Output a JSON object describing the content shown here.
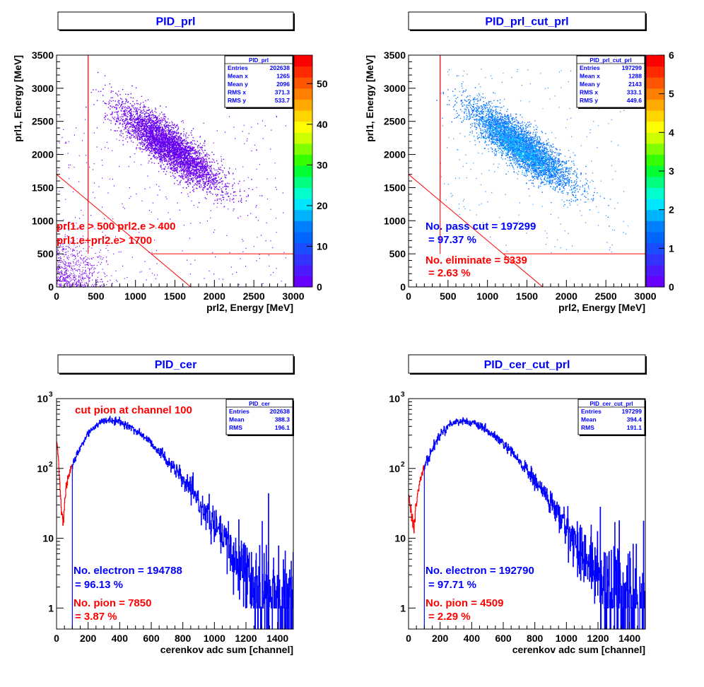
{
  "pads": [
    {
      "title": "PID_prl",
      "kind": "hist2d",
      "xlabel": "prl2, Energy [MeV]",
      "ylabel": "prl1, Energy [MeV]",
      "xticks": [
        "0",
        "500",
        "1000",
        "1500",
        "2000",
        "2500",
        "3000"
      ],
      "yticks": [
        "0",
        "500",
        "1000",
        "1500",
        "2000",
        "2500",
        "3000",
        "3500"
      ],
      "stats": {
        "title": "PID_prl",
        "rows": [
          {
            "k": "Entries",
            "v": "202638"
          },
          {
            "k": "Mean x",
            "v": "1265"
          },
          {
            "k": "Mean y",
            "v": "2096"
          },
          {
            "k": "RMS x",
            "v": "371.3"
          },
          {
            "k": "RMS y",
            "v": "533.7"
          }
        ]
      },
      "palette": {
        "ticks": [
          "0",
          "10",
          "20",
          "30",
          "40",
          "50"
        ]
      },
      "annotations": [
        {
          "text": "prl1.e > 500 prl2.e > 400",
          "color": "#ff0000"
        },
        {
          "text": "prl1.e+prl2.e> 1700",
          "color": "#ff0000"
        }
      ]
    },
    {
      "title": "PID_prl_cut_prl",
      "kind": "hist2d",
      "xlabel": "prl2, Energy [MeV]",
      "ylabel": "prl1, Energy [MeV]",
      "xticks": [
        "0",
        "500",
        "1000",
        "1500",
        "2000",
        "2500",
        "3000"
      ],
      "yticks": [
        "0",
        "500",
        "1000",
        "1500",
        "2000",
        "2500",
        "3000",
        "3500"
      ],
      "stats": {
        "title": "PID_prl_cut_prl",
        "rows": [
          {
            "k": "Entries",
            "v": "197299"
          },
          {
            "k": "Mean x",
            "v": "1288"
          },
          {
            "k": "Mean y",
            "v": "2143"
          },
          {
            "k": "RMS x",
            "v": "333.1"
          },
          {
            "k": "RMS y",
            "v": "449.6"
          }
        ]
      },
      "palette": {
        "ticks": [
          "0",
          "1",
          "2",
          "3",
          "4",
          "5",
          "6"
        ]
      },
      "annotations": [
        {
          "text": "No. pass cut = 197299",
          "color": "#0000ff"
        },
        {
          "text": "= 97.37 %",
          "color": "#0000ff"
        },
        {
          "text": "No. eliminate = 5339",
          "color": "#ff0000"
        },
        {
          "text": "= 2.63 %",
          "color": "#ff0000"
        }
      ]
    },
    {
      "title": "PID_cer",
      "kind": "hist1d",
      "xlabel": "cerenkov adc sum [channel]",
      "ylabel": "",
      "xticks": [
        "0",
        "200",
        "400",
        "600",
        "800",
        "1000",
        "1200",
        "1400"
      ],
      "yticks": [
        {
          "base": "1",
          "exp": ""
        },
        {
          "base": "10",
          "exp": ""
        },
        {
          "base": "10",
          "exp": "2"
        },
        {
          "base": "10",
          "exp": "3"
        }
      ],
      "stats": {
        "title": "PID_cer",
        "rows": [
          {
            "k": "Entries",
            "v": "202638"
          },
          {
            "k": "Mean",
            "v": "388.3"
          },
          {
            "k": "RMS",
            "v": "196.1"
          }
        ]
      },
      "annotations": [
        {
          "text": "cut pion at channel 100",
          "color": "#ff0000"
        },
        {
          "text": "No. electron = 194788",
          "color": "#0000ff"
        },
        {
          "text": "= 96.13 %",
          "color": "#0000ff"
        },
        {
          "text": "No. pion = 7850",
          "color": "#ff0000"
        },
        {
          "text": "= 3.87 %",
          "color": "#ff0000"
        }
      ]
    },
    {
      "title": "PID_cer_cut_prl",
      "kind": "hist1d",
      "xlabel": "cerenkov adc sum [channel]",
      "ylabel": "",
      "xticks": [
        "0",
        "200",
        "400",
        "600",
        "800",
        "1000",
        "1200",
        "1400"
      ],
      "yticks": [
        {
          "base": "1",
          "exp": ""
        },
        {
          "base": "10",
          "exp": ""
        },
        {
          "base": "10",
          "exp": "2"
        },
        {
          "base": "10",
          "exp": "3"
        }
      ],
      "stats": {
        "title": "PID_cer_cut_prl",
        "rows": [
          {
            "k": "Entries",
            "v": "197299"
          },
          {
            "k": "Mean",
            "v": "394.4"
          },
          {
            "k": "RMS",
            "v": "191.1"
          }
        ]
      },
      "annotations": [
        {
          "text": "No. electron = 192790",
          "color": "#0000ff"
        },
        {
          "text": "= 97.71 %",
          "color": "#0000ff"
        },
        {
          "text": "No. pion = 4509",
          "color": "#ff0000"
        },
        {
          "text": "= 2.29 %",
          "color": "#ff0000"
        }
      ]
    }
  ],
  "chart_data": [
    {
      "type": "heatmap",
      "title": "PID_prl",
      "xlabel": "prl2, Energy [MeV]",
      "ylabel": "prl1, Energy [MeV]",
      "xlim": [
        0,
        3000
      ],
      "ylim": [
        0,
        3500
      ],
      "zlim": [
        0,
        57
      ],
      "color_scale": "rainbow",
      "cuts": {
        "prl1_min": 500,
        "prl2_min": 400,
        "sum_min": 1700
      },
      "stats": {
        "entries": 202638,
        "mean_x": 1265,
        "mean_y": 2096,
        "rms_x": 371.3,
        "rms_y": 533.7
      }
    },
    {
      "type": "heatmap",
      "title": "PID_prl_cut_prl",
      "xlabel": "prl2, Energy [MeV]",
      "ylabel": "prl1, Energy [MeV]",
      "xlim": [
        0,
        3000
      ],
      "ylim": [
        0,
        3500
      ],
      "zlim": [
        0,
        6
      ],
      "color_scale": "rainbow",
      "cuts": {
        "prl1_min": 500,
        "prl2_min": 400,
        "sum_min": 1700
      },
      "stats": {
        "entries": 197299,
        "mean_x": 1288,
        "mean_y": 2143,
        "rms_x": 333.1,
        "rms_y": 449.6
      },
      "pass_count": 197299,
      "pass_percent": 97.37,
      "eliminated_count": 5339,
      "eliminated_percent": 2.63
    },
    {
      "type": "line",
      "title": "PID_cer",
      "xlabel": "cerenkov adc sum [channel]",
      "xlim": [
        0,
        1500
      ],
      "ylim": [
        0.5,
        1000
      ],
      "yscale": "log",
      "cut_channel": 100,
      "stats": {
        "entries": 202638,
        "mean": 388.3,
        "rms": 196.1
      },
      "electron_count": 194788,
      "electron_percent": 96.13,
      "pion_count": 7850,
      "pion_percent": 3.87,
      "series": [
        {
          "color": "#ff0000",
          "x": [
            0,
            10,
            20,
            30,
            40,
            50,
            60,
            70,
            80,
            90,
            100
          ],
          "values": [
            250,
            150,
            60,
            25,
            16,
            30,
            50,
            70,
            85,
            100,
            110
          ]
        },
        {
          "color": "#0000ff",
          "x": [
            100,
            150,
            200,
            250,
            300,
            350,
            400,
            450,
            500,
            550,
            600,
            650,
            700,
            750,
            800,
            850,
            900,
            950,
            1000,
            1050,
            1100,
            1150,
            1200,
            1250,
            1300,
            1350,
            1400,
            1450,
            1500
          ],
          "values": [
            110,
            200,
            320,
            420,
            480,
            490,
            460,
            410,
            350,
            290,
            230,
            175,
            130,
            95,
            68,
            48,
            33,
            22,
            15,
            10,
            6.5,
            4.5,
            3,
            2,
            1.5,
            1.2,
            1,
            1,
            1
          ]
        }
      ]
    },
    {
      "type": "line",
      "title": "PID_cer_cut_prl",
      "xlabel": "cerenkov adc sum [channel]",
      "xlim": [
        0,
        1500
      ],
      "ylim": [
        0.5,
        1000
      ],
      "yscale": "log",
      "cut_channel": 100,
      "stats": {
        "entries": 197299,
        "mean": 394.4,
        "rms": 191.1
      },
      "electron_count": 192790,
      "electron_percent": 97.71,
      "pion_count": 4509,
      "pion_percent": 2.29,
      "series": [
        {
          "color": "#ff0000",
          "x": [
            0,
            10,
            20,
            30,
            40,
            50,
            60,
            70,
            80,
            90,
            100
          ],
          "values": [
            40,
            30,
            18,
            14,
            20,
            35,
            50,
            65,
            80,
            95,
            105
          ]
        },
        {
          "color": "#0000ff",
          "x": [
            100,
            150,
            200,
            250,
            300,
            350,
            400,
            450,
            500,
            550,
            600,
            650,
            700,
            750,
            800,
            850,
            900,
            950,
            1000,
            1050,
            1100,
            1150,
            1200,
            1250,
            1300,
            1350,
            1400,
            1450,
            1500
          ],
          "values": [
            105,
            190,
            310,
            410,
            470,
            480,
            450,
            400,
            340,
            280,
            225,
            170,
            128,
            93,
            66,
            47,
            32,
            21,
            14,
            9.5,
            6,
            4.2,
            2.8,
            2,
            1.5,
            1.2,
            1,
            1,
            1
          ]
        }
      ]
    }
  ]
}
